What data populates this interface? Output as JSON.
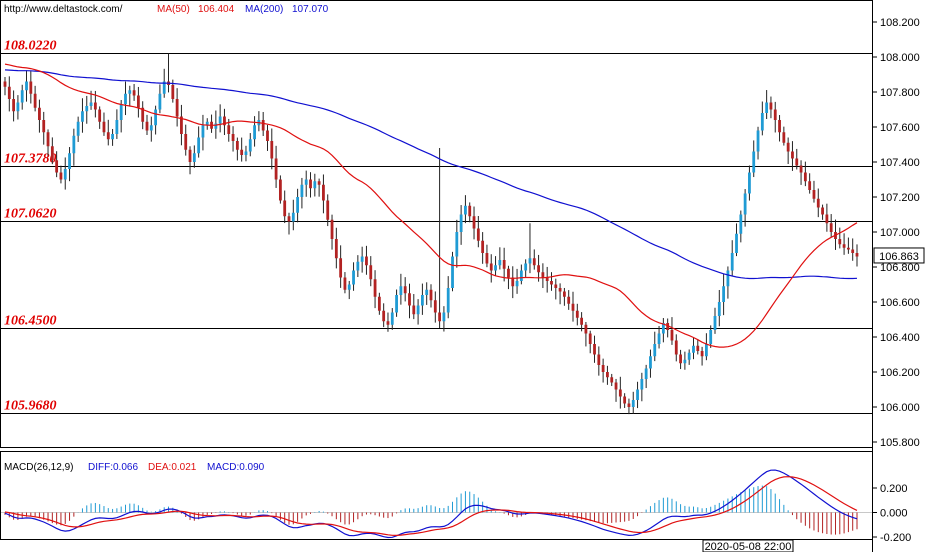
{
  "header": {
    "source_url": "http://www.deltastock.com/",
    "ma50_label": "MA(50)",
    "ma50_value": "106.404",
    "ma200_label": "MA(200)",
    "ma200_value": "107.070"
  },
  "macd_header": {
    "label": "MACD(26,12,9)",
    "diff": "DIFF:0.066",
    "dea": "DEA:0.021",
    "macd": "MACD:0.090"
  },
  "current_price": "106.863",
  "time_label": "2020-05-08 22:00",
  "colors": {
    "bull": "#1f9bd4",
    "bear": "#b22222",
    "ma50": "#e01010",
    "ma200": "#1010d0",
    "level": "#e00000"
  },
  "chart_data": [
    {
      "type": "candlestick",
      "title": "",
      "ylim": [
        105.7,
        108.3
      ],
      "y_ticks": [
        "108.200",
        "108.000",
        "107.800",
        "107.600",
        "107.400",
        "107.200",
        "107.000",
        "106.800",
        "106.600",
        "106.400",
        "106.200",
        "106.000",
        "105.800"
      ],
      "levels": [
        {
          "value": 108.022,
          "label": "108.0220"
        },
        {
          "value": 107.378,
          "label": "107.3780"
        },
        {
          "value": 107.062,
          "label": "107.0620"
        },
        {
          "value": 106.45,
          "label": "106.4500"
        },
        {
          "value": 105.968,
          "label": "105.9680"
        }
      ],
      "close": [
        107.83,
        107.76,
        107.69,
        107.74,
        107.81,
        107.86,
        107.79,
        107.71,
        107.64,
        107.57,
        107.49,
        107.41,
        107.34,
        107.3,
        107.36,
        107.45,
        107.55,
        107.63,
        107.69,
        107.72,
        107.74,
        107.7,
        107.63,
        107.57,
        107.53,
        107.56,
        107.64,
        107.73,
        107.79,
        107.81,
        107.78,
        107.71,
        107.63,
        107.58,
        107.61,
        107.7,
        107.79,
        107.86,
        107.84,
        107.76,
        107.66,
        107.56,
        107.47,
        107.4,
        107.45,
        107.54,
        107.61,
        107.63,
        107.59,
        107.62,
        107.66,
        107.61,
        107.56,
        107.52,
        107.47,
        107.44,
        107.46,
        107.53,
        107.61,
        107.64,
        107.58,
        107.52,
        107.42,
        107.3,
        107.18,
        107.09,
        107.06,
        107.11,
        107.2,
        107.27,
        107.3,
        107.25,
        107.29,
        107.27,
        107.18,
        107.07,
        106.96,
        106.85,
        106.74,
        106.67,
        106.7,
        106.78,
        106.83,
        106.86,
        106.81,
        106.73,
        106.63,
        106.55,
        106.49,
        106.47,
        106.54,
        106.64,
        106.69,
        106.65,
        106.58,
        106.53,
        106.58,
        106.64,
        106.67,
        106.61,
        106.54,
        106.49,
        106.54,
        106.68,
        106.86,
        107.0,
        107.1,
        107.15,
        107.09,
        107.02,
        106.95,
        106.88,
        106.82,
        106.78,
        106.81,
        106.84,
        106.79,
        106.74,
        106.69,
        106.72,
        106.78,
        106.82,
        106.85,
        106.81,
        106.77,
        106.74,
        106.72,
        106.7,
        106.68,
        106.66,
        106.63,
        106.59,
        106.55,
        106.51,
        106.47,
        106.42,
        106.36,
        106.3,
        106.24,
        106.2,
        106.17,
        106.14,
        106.1,
        106.06,
        106.02,
        106.0,
        106.04,
        106.1,
        106.16,
        106.22,
        106.29,
        106.36,
        106.42,
        106.48,
        106.44,
        106.38,
        106.3,
        106.25,
        106.27,
        106.31,
        106.35,
        106.32,
        106.29,
        106.36,
        106.44,
        106.52,
        106.6,
        106.69,
        106.78,
        106.88,
        106.99,
        107.1,
        107.22,
        107.34,
        107.46,
        107.58,
        107.68,
        107.74,
        107.7,
        107.64,
        107.57,
        107.51,
        107.46,
        107.42,
        107.38,
        107.34,
        107.29,
        107.24,
        107.19,
        107.14,
        107.1,
        107.05,
        107.0,
        106.96,
        106.93,
        106.91,
        106.9,
        106.88,
        106.86
      ]
    },
    {
      "type": "line",
      "ylim": [
        -0.29,
        0.31
      ],
      "y_ticks": [
        "0.200",
        "0.000",
        "-0.200"
      ],
      "series": [
        {
          "name": "DIFF"
        },
        {
          "name": "DEA"
        },
        {
          "name": "MACD"
        }
      ]
    }
  ]
}
